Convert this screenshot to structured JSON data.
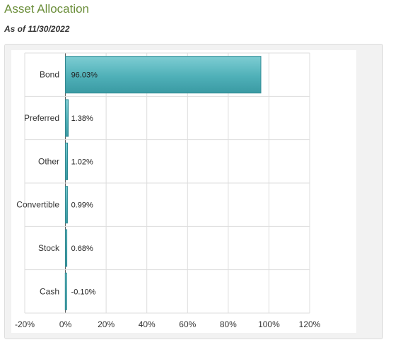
{
  "header": {
    "title": "Asset Allocation",
    "as_of": "As of 11/30/2022"
  },
  "colors": {
    "title": "#6b8e3a",
    "bar_fill": "#4fb0b8",
    "bar_stroke": "#2e8a93",
    "grid": "#dddddd"
  },
  "chart_data": {
    "type": "bar",
    "orientation": "horizontal",
    "categories": [
      "Bond",
      "Preferred",
      "Other",
      "Convertible",
      "Stock",
      "Cash"
    ],
    "values": [
      96.03,
      1.38,
      1.02,
      0.99,
      0.68,
      -0.1
    ],
    "value_labels": [
      "96.03%",
      "1.38%",
      "1.02%",
      "0.99%",
      "0.68%",
      "-0.10%"
    ],
    "xlim": [
      -20,
      120
    ],
    "xticks": [
      -20,
      0,
      20,
      40,
      60,
      80,
      100,
      120
    ],
    "xtick_labels": [
      "-20%",
      "0%",
      "20%",
      "40%",
      "60%",
      "80%",
      "100%",
      "120%"
    ],
    "grid": true,
    "legend": "none"
  }
}
